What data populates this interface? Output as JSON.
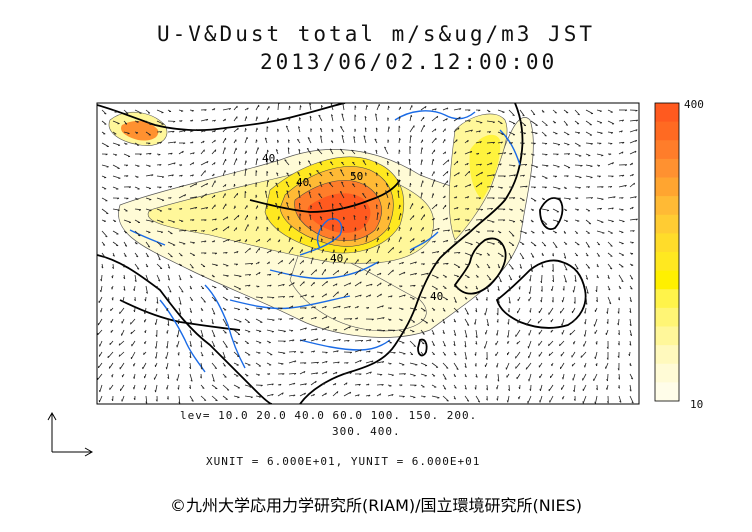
{
  "title": {
    "line1": "U-V&Dust total m/s&ug/m3 JST",
    "line2": "2013/06/02.12:00:00"
  },
  "colorbar": {
    "max_label": "400",
    "min_label": "10",
    "colors": [
      "#ff5a1f",
      "#ff6a22",
      "#ff7d2a",
      "#ff9130",
      "#ffa530",
      "#ffba35",
      "#ffcc33",
      "#ffdc2a",
      "#ffe820",
      "#fff000",
      "#fff34a",
      "#fff575",
      "#fff79a",
      "#fff9bd",
      "#fffbd6",
      "#fffde9"
    ]
  },
  "legend": {
    "levels_line1": "lev= 10.0 20.0 40.0 60.0 100. 150. 200.",
    "levels_line2": "300. 400.",
    "units": "XUNIT = 6.000E+01, YUNIT = 6.000E+01"
  },
  "contour_labels": [
    "40",
    "50",
    "40",
    "40",
    "40"
  ],
  "copyright": "©九州大学応用力学研究所(RIAM)/国立環境研究所(NIES)"
}
